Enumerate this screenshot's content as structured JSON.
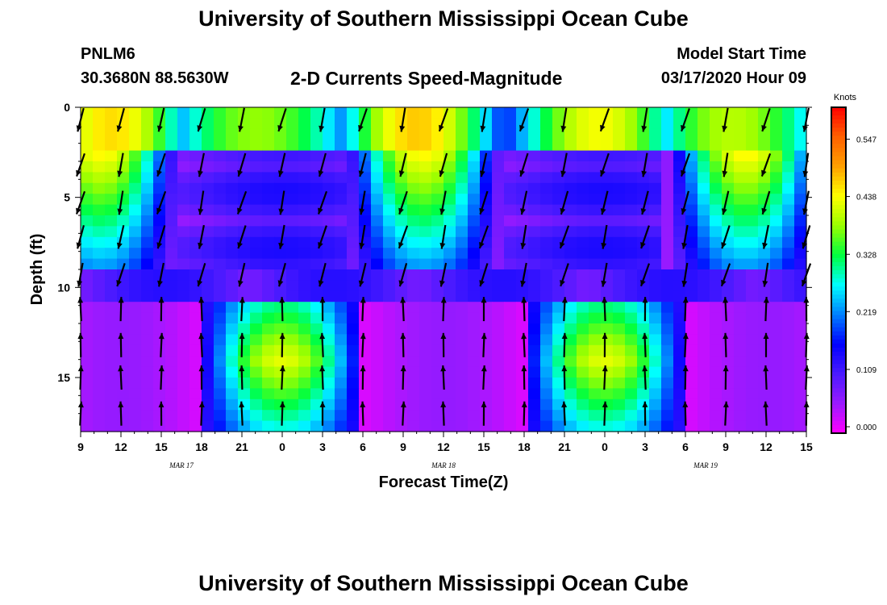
{
  "header": {
    "title": "University of Southern Mississippi Ocean Cube",
    "station": "PNLM6",
    "coords": "30.3680N 88.5630W",
    "subtitle": "2-D Currents Speed-Magnitude",
    "model_label": "Model Start Time",
    "model_time": "03/17/2020 Hour 09",
    "footer_title": "University of Southern Mississippi Ocean Cube"
  },
  "chart_data": {
    "type": "heatmap",
    "title": "2-D Currents Speed-Magnitude",
    "xlabel": "Forecast Time(Z)",
    "ylabel": "Depth (ft)",
    "colorbar_label": "Knots",
    "x_ticks": [
      "9",
      "12",
      "15",
      "18",
      "21",
      "0",
      "3",
      "6",
      "9",
      "12",
      "15",
      "18",
      "21",
      "0",
      "3",
      "6",
      "9",
      "12",
      "15"
    ],
    "date_labels": [
      {
        "label": "MAR 17",
        "hours_from_start": 7.5
      },
      {
        "label": "MAR 18",
        "hours_from_start": 27
      },
      {
        "label": "MAR 19",
        "hours_from_start": 46.5
      }
    ],
    "y_ticks": [
      0,
      5,
      10,
      15
    ],
    "depth_range": [
      0,
      18
    ],
    "hours_range": [
      0,
      54
    ],
    "colorbar_ticks": [
      "0.000",
      "0.109",
      "0.219",
      "0.328",
      "0.438",
      "0.547"
    ],
    "colorbar_values": [
      0.0,
      0.109,
      0.219,
      0.328,
      0.438,
      0.547
    ],
    "colorbar_range": [
      0,
      0.62
    ],
    "colormap": [
      "#ff00ff",
      "#9a1aff",
      "#4a1aff",
      "#0000ff",
      "#0080ff",
      "#00ffff",
      "#00ff40",
      "#9aff00",
      "#ffff00",
      "#ffa000",
      "#ff6000",
      "#ff0000"
    ],
    "speed_model": {
      "description": "Speed (knots) vs forecast hour t and depth d, tidal pattern with layered structure",
      "cycle_hours": 24,
      "surface_strong_layer_depth": 9.5,
      "low_speed_band_depth": 10
    },
    "arrow_rows_depth_ft": [
      0.7,
      3.2,
      5.3,
      7.2,
      9.3,
      11.2,
      13.2,
      15.0,
      17.0
    ]
  }
}
